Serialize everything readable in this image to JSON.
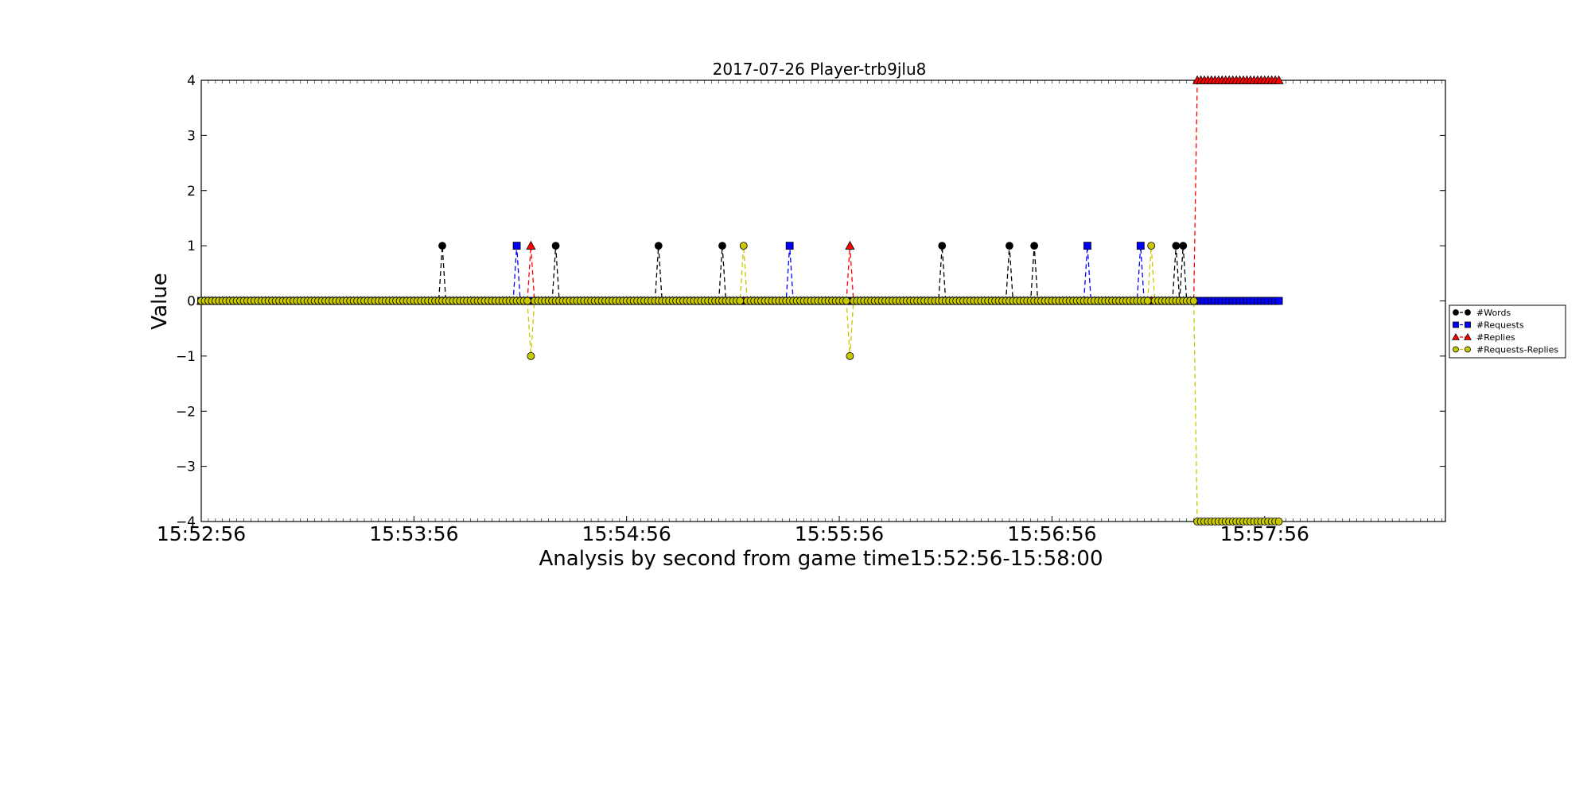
{
  "chart_data": {
    "type": "line",
    "title": "2017-07-26 Player-trb9jlu8",
    "xlabel": "Analysis by second from game time15:52:56-15:58:00",
    "ylabel": "Value",
    "xlim": [
      "15:52:56",
      "15:58:47"
    ],
    "ylim": [
      -4,
      4
    ],
    "x_tick_labels": [
      "15:52:56",
      "15:53:56",
      "15:54:56",
      "15:55:56",
      "15:56:56",
      "15:57:56"
    ],
    "y_tick_labels": [
      "4",
      "3",
      "2",
      "1",
      "0",
      "−1",
      "−2",
      "−3",
      "−4"
    ],
    "x_start": "15:52:56",
    "x_end": "15:58:00",
    "grid": false,
    "legend_position": "right-outside",
    "series": [
      {
        "name": "#Words",
        "color": "#000000",
        "marker": "circle",
        "default": 0,
        "points": [
          {
            "x": "15:54:04",
            "y": 1
          },
          {
            "x": "15:54:36",
            "y": 1
          },
          {
            "x": "15:55:05",
            "y": 1
          },
          {
            "x": "15:55:23",
            "y": 1
          },
          {
            "x": "15:55:56",
            "y": 0
          },
          {
            "x": "15:56:25",
            "y": 1
          },
          {
            "x": "15:56:44",
            "y": 1
          },
          {
            "x": "15:56:51",
            "y": 1
          },
          {
            "x": "15:57:06",
            "y": 0
          },
          {
            "x": "15:57:21",
            "y": 0
          },
          {
            "x": "15:57:31",
            "y": 1
          },
          {
            "x": "15:57:33",
            "y": 1
          }
        ]
      },
      {
        "name": "#Requests",
        "color": "#0000ff",
        "marker": "square",
        "default": 0,
        "points": [
          {
            "x": "15:54:25",
            "y": 1
          },
          {
            "x": "15:55:29",
            "y": 0
          },
          {
            "x": "15:55:42",
            "y": 1
          },
          {
            "x": "15:57:06",
            "y": 1
          },
          {
            "x": "15:57:21",
            "y": 1
          },
          {
            "x": "15:57:24",
            "y": 0
          }
        ]
      },
      {
        "name": "#Replies",
        "color": "#ff0000",
        "marker": "triangle",
        "default": 0,
        "points": [
          {
            "x": "15:54:29",
            "y": 1
          },
          {
            "x": "15:55:59",
            "y": 1
          }
        ],
        "after": {
          "x": "15:57:37",
          "y": 4
        }
      },
      {
        "name": "#Requests-Replies",
        "color": "#c8c800",
        "marker": "circle",
        "default": 0,
        "points": [
          {
            "x": "15:54:29",
            "y": -1
          },
          {
            "x": "15:55:29",
            "y": 1
          },
          {
            "x": "15:55:59",
            "y": -1
          },
          {
            "x": "15:57:24",
            "y": 1
          }
        ],
        "after": {
          "x": "15:57:37",
          "y": -4
        }
      }
    ]
  }
}
